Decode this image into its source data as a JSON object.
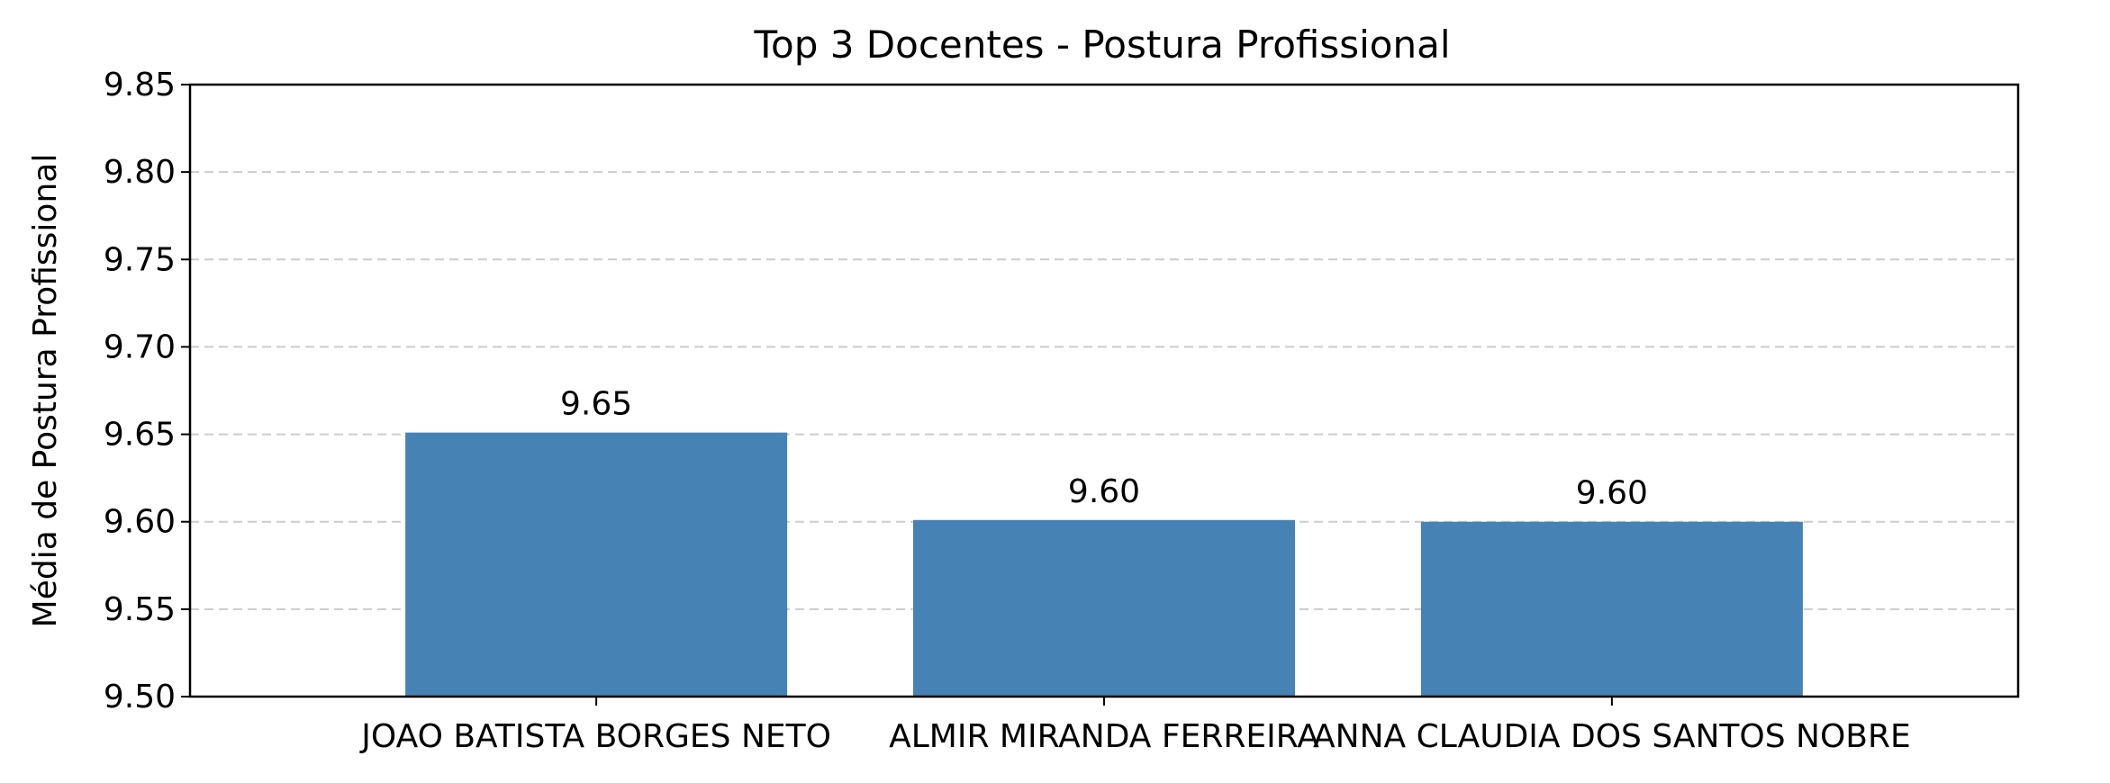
{
  "chart_data": {
    "type": "bar",
    "title": "Top 3 Docentes - Postura Profissional",
    "xlabel": "",
    "ylabel": "Média de Postura Profissional",
    "categories": [
      "JOAO BATISTA BORGES NETO",
      "ALMIR MIRANDA FERREIRA",
      "ANNA CLAUDIA DOS SANTOS NOBRE"
    ],
    "values": [
      9.651,
      9.601,
      9.6
    ],
    "data_labels": [
      "9.65",
      "9.60",
      "9.60"
    ],
    "ylim": [
      9.5,
      9.85
    ],
    "yticks": [
      "9.50",
      "9.55",
      "9.60",
      "9.65",
      "9.70",
      "9.75",
      "9.80",
      "9.85"
    ],
    "grid": "y, dashed",
    "bar_color": "#4682b4",
    "grid_color": "#cccccc"
  }
}
